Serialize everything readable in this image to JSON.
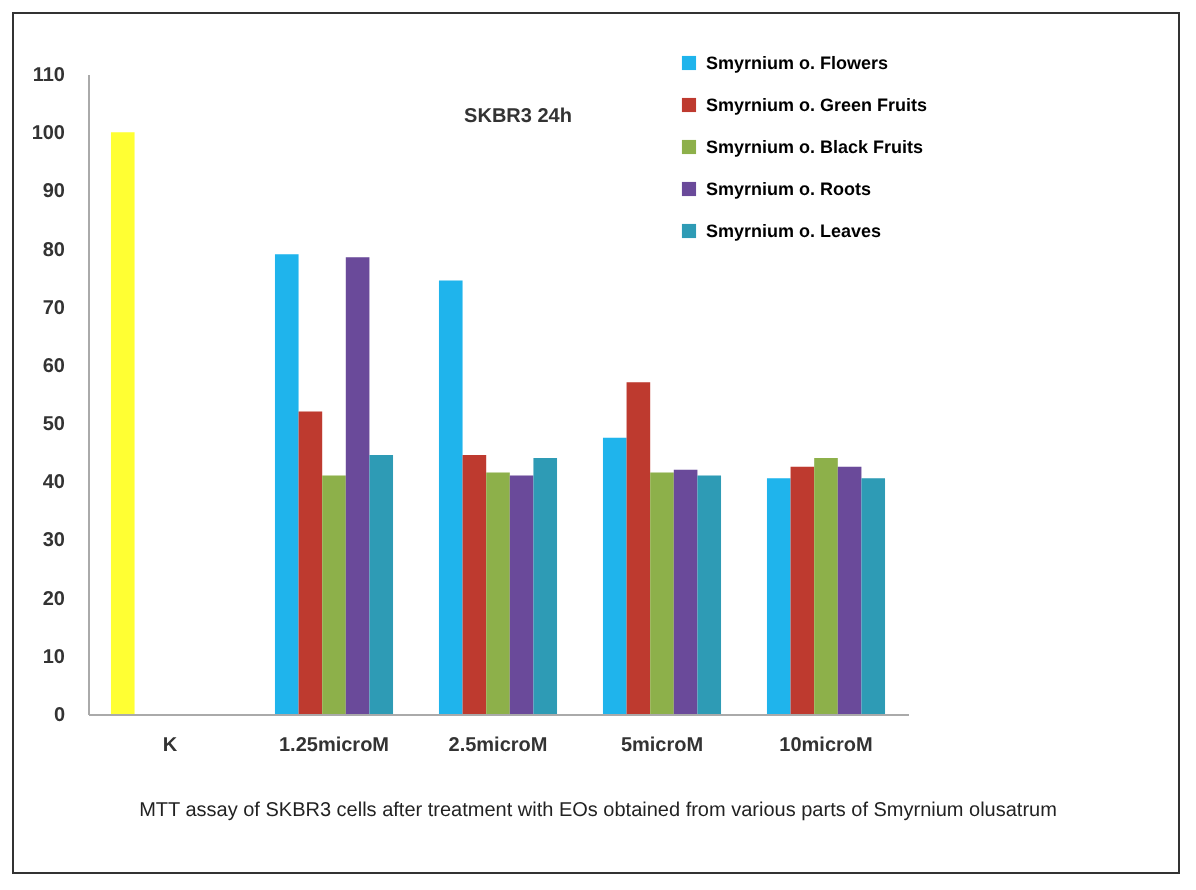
{
  "chart_data": {
    "type": "bar",
    "title": "SKBR3 24h",
    "categories": [
      "K",
      "1.25microM",
      "2.5microM",
      "5microM",
      "10microM"
    ],
    "series": [
      {
        "name": "Smyrnium o. Flowers",
        "color": "#1fb4ec",
        "colors": [
          "#ffff33",
          "#1fb4ec",
          "#1fb4ec",
          "#1fb4ec",
          "#1fb4ec"
        ],
        "values": [
          100,
          79,
          74.5,
          47.5,
          40.5
        ]
      },
      {
        "name": "Smyrnium o. Green Fruits",
        "color": "#be3a2f",
        "values": [
          null,
          52,
          44.5,
          57,
          42.5
        ]
      },
      {
        "name": "Smyrnium o. Black Fruits",
        "color": "#8db04a",
        "values": [
          null,
          41,
          41.5,
          41.5,
          44
        ]
      },
      {
        "name": "Smyrnium o. Roots",
        "color": "#6a4a9a",
        "values": [
          null,
          78.5,
          41,
          42,
          42.5
        ]
      },
      {
        "name": "Smyrnium o. Leaves",
        "color": "#2e9bb5",
        "values": [
          null,
          44.5,
          44,
          41,
          40.5
        ]
      }
    ],
    "ylim": [
      0,
      110
    ],
    "yticks": [
      0,
      10,
      20,
      30,
      40,
      50,
      60,
      70,
      80,
      90,
      100,
      110
    ],
    "legend": "top right",
    "annotations": [
      "MTT assay of SKBR3 cells after treatment with EOs obtained from various parts of Smyrnium olusatrum"
    ]
  }
}
